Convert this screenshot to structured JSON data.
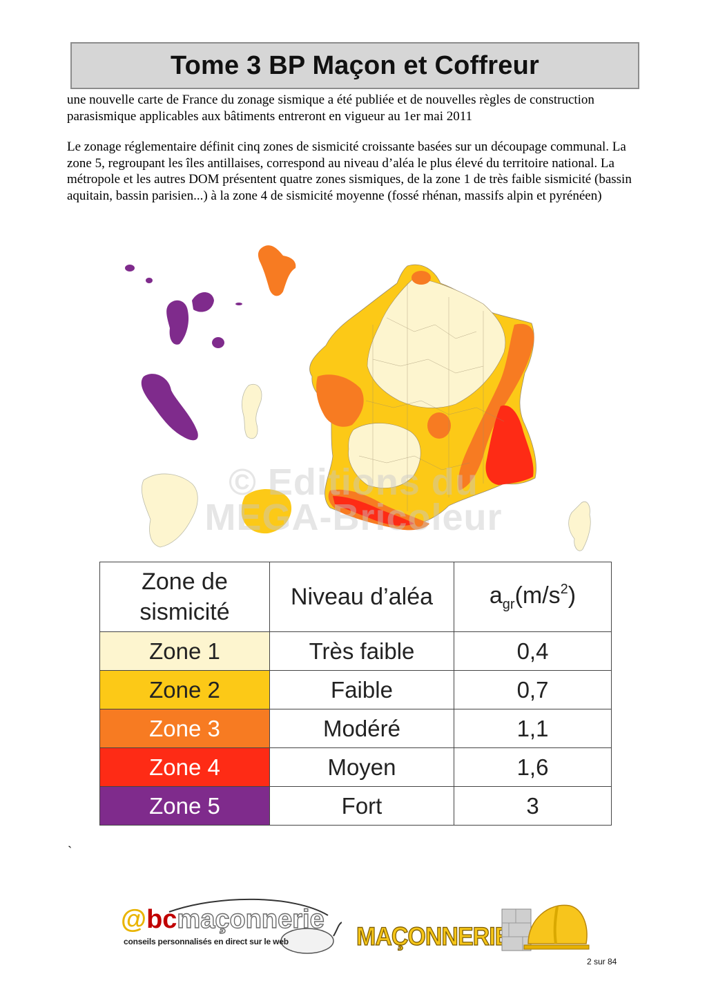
{
  "header": {
    "title": "Tome 3 BP Maçon et Coffreur"
  },
  "paragraphs": {
    "p1": "une nouvelle carte de France du zonage sismique a été publiée et de nouvelles règles de construction parasismique applicables aux bâtiments entreront en vigueur au 1er mai 2011",
    "p2": "Le zonage réglementaire définit cinq zones de sismicité croissante basées sur un découpage communal. La zone 5, regroupant les îles antillaises, correspond au niveau d’aléa le plus élevé du territoire national. La métropole et les autres DOM présentent quatre zones sismiques, de la zone 1 de très faible sismicité (bassin aquitain, bassin parisien...) à la zone 4 de sismicité moyenne (fossé rhénan, massifs alpin et pyrénéen)"
  },
  "watermark": {
    "line1": "© Editions du",
    "line2": "MEGA-Bricoleur"
  },
  "colors": {
    "zone1": "#fdf5cf",
    "zone2": "#fcc917",
    "zone3": "#f77b22",
    "zone4": "#fe2b15",
    "zone5": "#7f2b8c"
  },
  "table": {
    "header": {
      "zone_line1": "Zone de",
      "zone_line2": "sismicité",
      "level": "Niveau d’aléa",
      "agr_a": "a",
      "agr_sub": "gr",
      "agr_unit": "(m/s",
      "agr_sup": "2",
      "agr_close": ")"
    },
    "rows": [
      {
        "zone": "Zone 1",
        "level": "Très faible",
        "agr": "0,4"
      },
      {
        "zone": "Zone 2",
        "level": "Faible",
        "agr": "0,7"
      },
      {
        "zone": "Zone 3",
        "level": "Modéré",
        "agr": "1,1"
      },
      {
        "zone": "Zone 4",
        "level": "Moyen",
        "agr": "1,6"
      },
      {
        "zone": "Zone 5",
        "level": "Fort",
        "agr": "3"
      }
    ]
  },
  "stray_mark": "`",
  "footer": {
    "brand_at": "@",
    "brand_bc": "bc",
    "brand_rest": "maçonnerie",
    "tagline": "conseils personnalisés en direct sur le web",
    "banner": "MAÇONNERIE",
    "page": "2 sur 84"
  }
}
